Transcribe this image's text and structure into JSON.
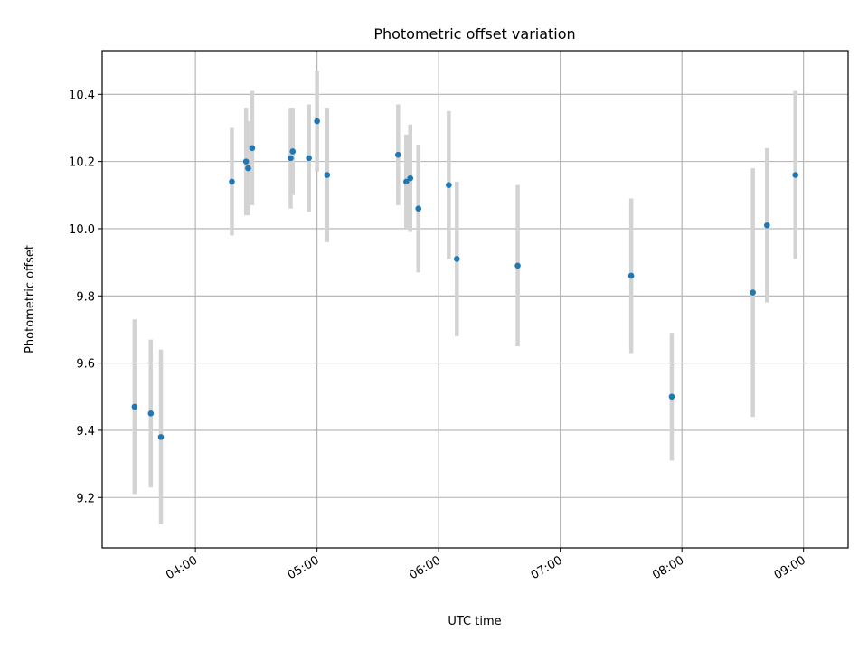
{
  "chart_data": {
    "type": "scatter",
    "title": "Photometric offset variation",
    "xlabel": "UTC time",
    "ylabel": "Photometric offset",
    "x_axis_type": "time",
    "xlim": [
      "03:14",
      "09:22"
    ],
    "ylim": [
      9.05,
      10.53
    ],
    "x_ticks": [
      "04:00",
      "05:00",
      "06:00",
      "07:00",
      "08:00",
      "09:00"
    ],
    "y_ticks": [
      9.2,
      9.4,
      9.6,
      9.8,
      10.0,
      10.2,
      10.4
    ],
    "y_tick_labels": [
      "9.2",
      "9.4",
      "9.6",
      "9.8",
      "10.0",
      "10.2",
      "10.4"
    ],
    "grid": true,
    "legend": "none",
    "point_color": "#1f77b4",
    "errorbar_color": "#d3d3d3",
    "series": [
      {
        "points": [
          {
            "x": "03:30",
            "y": 9.47,
            "err": 0.26
          },
          {
            "x": "03:38",
            "y": 9.45,
            "err": 0.22
          },
          {
            "x": "03:43",
            "y": 9.38,
            "err": 0.26
          },
          {
            "x": "04:18",
            "y": 10.14,
            "err": 0.16
          },
          {
            "x": "04:25",
            "y": 10.2,
            "err": 0.16
          },
          {
            "x": "04:26",
            "y": 10.18,
            "err": 0.14
          },
          {
            "x": "04:28",
            "y": 10.24,
            "err": 0.17
          },
          {
            "x": "04:47",
            "y": 10.21,
            "err": 0.15
          },
          {
            "x": "04:48",
            "y": 10.23,
            "err": 0.13
          },
          {
            "x": "04:56",
            "y": 10.21,
            "err": 0.16
          },
          {
            "x": "05:00",
            "y": 10.32,
            "err": 0.15
          },
          {
            "x": "05:05",
            "y": 10.16,
            "err": 0.2
          },
          {
            "x": "05:40",
            "y": 10.22,
            "err": 0.15
          },
          {
            "x": "05:44",
            "y": 10.14,
            "err": 0.14
          },
          {
            "x": "05:46",
            "y": 10.15,
            "err": 0.16
          },
          {
            "x": "05:50",
            "y": 10.06,
            "err": 0.19
          },
          {
            "x": "06:05",
            "y": 10.13,
            "err": 0.22
          },
          {
            "x": "06:09",
            "y": 9.91,
            "err": 0.23
          },
          {
            "x": "06:39",
            "y": 9.89,
            "err": 0.24
          },
          {
            "x": "07:35",
            "y": 9.86,
            "err": 0.23
          },
          {
            "x": "07:55",
            "y": 9.5,
            "err": 0.19
          },
          {
            "x": "08:35",
            "y": 9.81,
            "err": 0.37
          },
          {
            "x": "08:42",
            "y": 10.01,
            "err": 0.23
          },
          {
            "x": "08:56",
            "y": 10.16,
            "err": 0.25
          }
        ]
      }
    ]
  }
}
